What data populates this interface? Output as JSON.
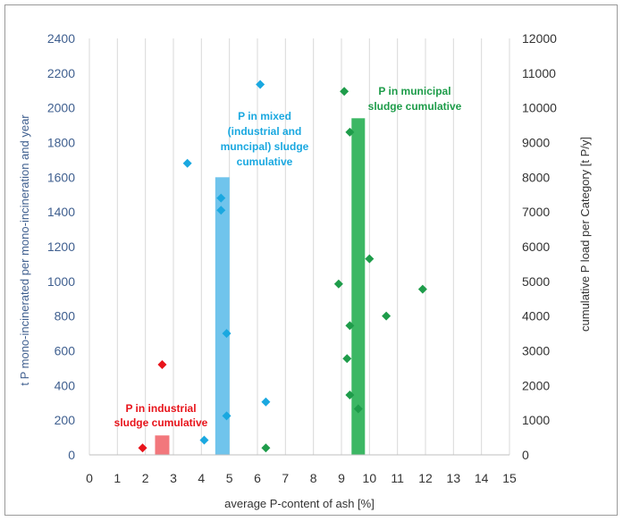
{
  "chart_data": {
    "type": "scatter",
    "title": "",
    "xlabel": "average P-content of ash [%]",
    "ylabel_left": "t P mono-incinerated per mono-incineration and year",
    "ylabel_right": "cumulative P load per Category [t P/y]",
    "xlim": [
      0,
      15
    ],
    "ylim_left": [
      0,
      2400
    ],
    "ylim_right": [
      0,
      12000
    ],
    "x_ticks": [
      "0",
      "1",
      "2",
      "3",
      "4",
      "5",
      "6",
      "7",
      "8",
      "9",
      "10",
      "11",
      "12",
      "13",
      "14",
      "15"
    ],
    "y_left_ticks": [
      "0",
      "200",
      "400",
      "600",
      "800",
      "1000",
      "1200",
      "1400",
      "1600",
      "1800",
      "2000",
      "2200",
      "2400"
    ],
    "y_right_ticks": [
      "0",
      "1000",
      "2000",
      "3000",
      "4000",
      "5000",
      "6000",
      "7000",
      "8000",
      "9000",
      "10000",
      "11000",
      "12000"
    ],
    "grid": "vertical",
    "series": [
      {
        "category": "industrial",
        "color": "#e8141b",
        "points": [
          [
            1.9,
            40
          ],
          [
            2.6,
            520
          ]
        ]
      },
      {
        "category": "mixed",
        "color": "#1aa8e0",
        "points": [
          [
            3.5,
            1680
          ],
          [
            4.1,
            85
          ],
          [
            4.7,
            1480
          ],
          [
            4.7,
            1410
          ],
          [
            4.9,
            700
          ],
          [
            4.9,
            225
          ],
          [
            6.1,
            2135
          ],
          [
            6.3,
            305
          ]
        ]
      },
      {
        "category": "municipal",
        "color": "#1e9c4a",
        "points": [
          [
            6.3,
            40
          ],
          [
            8.9,
            985
          ],
          [
            9.1,
            2095
          ],
          [
            9.2,
            555
          ],
          [
            9.3,
            1860
          ],
          [
            9.3,
            745
          ],
          [
            9.3,
            345
          ],
          [
            9.6,
            265
          ],
          [
            10.0,
            1130
          ],
          [
            10.6,
            800
          ],
          [
            11.9,
            955
          ]
        ]
      }
    ],
    "cumulative_bars": [
      {
        "category": "industrial",
        "x": 2.6,
        "value": 560,
        "color": "#f2777c"
      },
      {
        "category": "mixed",
        "x": 4.75,
        "value": 8000,
        "color": "#70c4ec"
      },
      {
        "category": "municipal",
        "x": 9.6,
        "value": 9700,
        "color": "#3cb764"
      }
    ],
    "annotations": [
      {
        "lines": [
          "P in industrial",
          "sludge cumulative"
        ],
        "color": "#e8141b"
      },
      {
        "lines": [
          "P in mixed",
          "(industrial and",
          "muncipal) sludge",
          "cumulative"
        ],
        "color": "#1aa8e0"
      },
      {
        "lines": [
          "P in municipal",
          "sludge cumulative"
        ],
        "color": "#1e9c4a"
      }
    ]
  }
}
